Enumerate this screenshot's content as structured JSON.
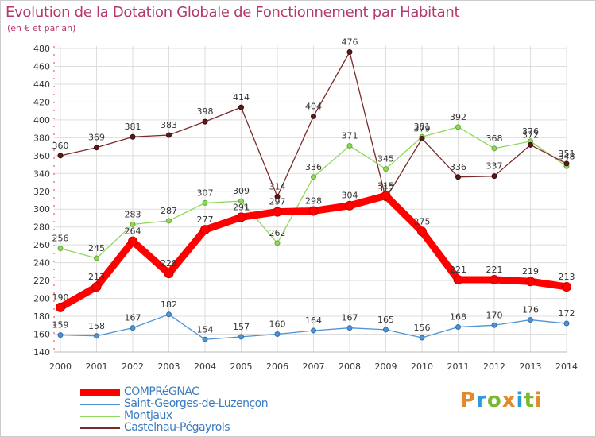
{
  "title": "Evolution de la Dotation Globale de Fonctionnement par Habitant",
  "subtitle": "(en € et par an)",
  "logo": {
    "text": "Proxiti",
    "colors": [
      "#e08a2b",
      "#2e9ad6",
      "#7cb82f",
      "#e08a2b",
      "#2e9ad6",
      "#7cb82f",
      "#e08a2b"
    ]
  },
  "chart_data": {
    "type": "line",
    "title": "Evolution de la Dotation Globale de Fonctionnement par Habitant",
    "subtitle": "(en € et par an)",
    "xlabel": "",
    "ylabel": "",
    "ylim": [
      140,
      480
    ],
    "ytick_step": 20,
    "yticks": [
      "140",
      "160",
      "180",
      "200",
      "220",
      "240",
      "260",
      "280",
      "300",
      "320",
      "340",
      "360",
      "380",
      "400",
      "420",
      "440",
      "460",
      "480"
    ],
    "grid": true,
    "legend_position": "bottom-left",
    "categories": [
      "2000",
      "2001",
      "2002",
      "2003",
      "2004",
      "2005",
      "2006",
      "2007",
      "2008",
      "2009",
      "2010",
      "2011",
      "2012",
      "2013",
      "2014"
    ],
    "series": [
      {
        "name": "COMPRéGNAC",
        "color": "#ff0000",
        "values": [
          190,
          213,
          264,
          228,
          277,
          291,
          297,
          298,
          304,
          315,
          275,
          221,
          221,
          219,
          213
        ],
        "labels": [
          "190",
          "213",
          "264",
          "228",
          "277",
          "291",
          "297",
          "298",
          "304",
          "315",
          "275",
          "221",
          "221",
          "219",
          "213"
        ]
      },
      {
        "name": "Saint-Georges-de-Luzençon",
        "color": "#4f93d4",
        "values": [
          159,
          158,
          167,
          182,
          154,
          157,
          160,
          164,
          167,
          165,
          156,
          168,
          170,
          176,
          172
        ],
        "labels": [
          "159",
          "158",
          "167",
          "182",
          "154",
          "157",
          "160",
          "164",
          "167",
          "165",
          "156",
          "168",
          "170",
          "176",
          "172"
        ]
      },
      {
        "name": "Montjaux",
        "color": "#8fd85a",
        "values": [
          256,
          245,
          283,
          287,
          307,
          309,
          262,
          336,
          371,
          345,
          381,
          392,
          368,
          376,
          348
        ],
        "labels": [
          "256",
          "245",
          "283",
          "287",
          "307",
          "309",
          "262",
          "336",
          "371",
          "345",
          "381",
          "392",
          "368",
          "376",
          "348"
        ]
      },
      {
        "name": "Castelnau-Pégayrols",
        "color": "#7a2a2a",
        "values": [
          360,
          369,
          381,
          383,
          398,
          414,
          314,
          404,
          476,
          312,
          379,
          336,
          337,
          372,
          351
        ],
        "labels": [
          "360",
          "369",
          "381",
          "383",
          "398",
          "414",
          "314",
          "404",
          "476",
          "312",
          "379",
          "336",
          "337",
          "372",
          "351"
        ]
      }
    ]
  }
}
